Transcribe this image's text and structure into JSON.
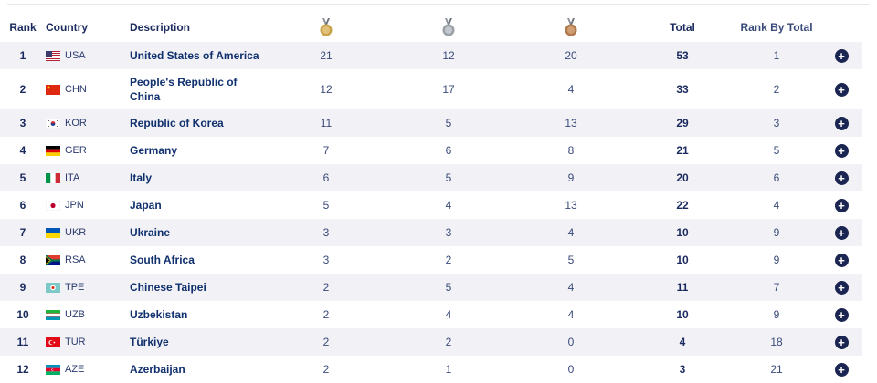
{
  "headers": {
    "rank": "Rank",
    "country": "Country",
    "description": "Description",
    "gold": "gold-medal-icon",
    "silver": "silver-medal-icon",
    "bronze": "bronze-medal-icon",
    "total": "Total",
    "rank_by_total": "Rank By Total"
  },
  "colors": {
    "gold": "#c9a24a",
    "silver": "#9aa0a8",
    "bronze": "#b07a4e",
    "accent": "#1a2552",
    "row_alt": "#f2f2f6"
  },
  "rows": [
    {
      "rank": "1",
      "code": "USA",
      "description": "United States of America",
      "gold": "21",
      "silver": "12",
      "bronze": "20",
      "total": "53",
      "rank_by_total": "1"
    },
    {
      "rank": "2",
      "code": "CHN",
      "description": "People's Republic of China",
      "gold": "12",
      "silver": "17",
      "bronze": "4",
      "total": "33",
      "rank_by_total": "2"
    },
    {
      "rank": "3",
      "code": "KOR",
      "description": "Republic of Korea",
      "gold": "11",
      "silver": "5",
      "bronze": "13",
      "total": "29",
      "rank_by_total": "3"
    },
    {
      "rank": "4",
      "code": "GER",
      "description": "Germany",
      "gold": "7",
      "silver": "6",
      "bronze": "8",
      "total": "21",
      "rank_by_total": "5"
    },
    {
      "rank": "5",
      "code": "ITA",
      "description": "Italy",
      "gold": "6",
      "silver": "5",
      "bronze": "9",
      "total": "20",
      "rank_by_total": "6"
    },
    {
      "rank": "6",
      "code": "JPN",
      "description": "Japan",
      "gold": "5",
      "silver": "4",
      "bronze": "13",
      "total": "22",
      "rank_by_total": "4"
    },
    {
      "rank": "7",
      "code": "UKR",
      "description": "Ukraine",
      "gold": "3",
      "silver": "3",
      "bronze": "4",
      "total": "10",
      "rank_by_total": "9"
    },
    {
      "rank": "8",
      "code": "RSA",
      "description": "South Africa",
      "gold": "3",
      "silver": "2",
      "bronze": "5",
      "total": "10",
      "rank_by_total": "9"
    },
    {
      "rank": "9",
      "code": "TPE",
      "description": "Chinese Taipei",
      "gold": "2",
      "silver": "5",
      "bronze": "4",
      "total": "11",
      "rank_by_total": "7"
    },
    {
      "rank": "10",
      "code": "UZB",
      "description": "Uzbekistan",
      "gold": "2",
      "silver": "4",
      "bronze": "4",
      "total": "10",
      "rank_by_total": "9"
    },
    {
      "rank": "11",
      "code": "TUR",
      "description": "Türkiye",
      "gold": "2",
      "silver": "2",
      "bronze": "0",
      "total": "4",
      "rank_by_total": "18"
    },
    {
      "rank": "12",
      "code": "AZE",
      "description": "Azerbaijan",
      "gold": "2",
      "silver": "1",
      "bronze": "0",
      "total": "3",
      "rank_by_total": "21"
    }
  ],
  "expand_icon": "plus-circle-icon"
}
